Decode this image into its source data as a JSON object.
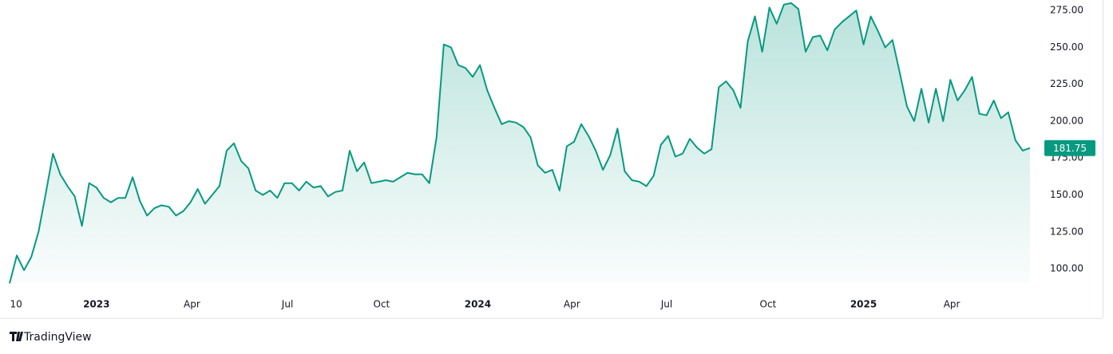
{
  "chart_data": {
    "type": "area",
    "attribution": "TradingView",
    "color": "#089981",
    "values": [
      90,
      109,
      99,
      108,
      125,
      151,
      178,
      164,
      156,
      149,
      129,
      158,
      155,
      148,
      145,
      148,
      148,
      162,
      146,
      136,
      141,
      143,
      142,
      136,
      139,
      145,
      154,
      144,
      150,
      156,
      180,
      185,
      173,
      168,
      153,
      150,
      153,
      148,
      158,
      158,
      153,
      159,
      155,
      156,
      149,
      152,
      153,
      180,
      166,
      172,
      158,
      159,
      160,
      159,
      162,
      165,
      164,
      164,
      158,
      189,
      252,
      250,
      238,
      236,
      230,
      238,
      221,
      209,
      198,
      200,
      199,
      196,
      189,
      170,
      165,
      167,
      153,
      183,
      186,
      198,
      190,
      180,
      167,
      177,
      195,
      166,
      160,
      159,
      156,
      163,
      184,
      190,
      176,
      178,
      188,
      182,
      178,
      181,
      223,
      227,
      221,
      209,
      254,
      271,
      247,
      277,
      266,
      279,
      280,
      276,
      247,
      257,
      258,
      248,
      262,
      267,
      271,
      275,
      252,
      271,
      261,
      250,
      255,
      233,
      210,
      200,
      222,
      199,
      222,
      200,
      228,
      214,
      221,
      230,
      205,
      204,
      214,
      202,
      206,
      187,
      180,
      181.75
    ],
    "xlim": [
      0,
      141
    ],
    "xticks": [
      {
        "value": 0.9,
        "label": "10"
      },
      {
        "value": 12,
        "label": "2023"
      },
      {
        "value": 25.2,
        "label": "Apr"
      },
      {
        "value": 38.4,
        "label": "Jul"
      },
      {
        "value": 51.4,
        "label": "Oct"
      },
      {
        "value": 64.7,
        "label": "2024"
      },
      {
        "value": 77.7,
        "label": "Apr"
      },
      {
        "value": 90.8,
        "label": "Jul"
      },
      {
        "value": 104.8,
        "label": "Oct"
      },
      {
        "value": 118,
        "label": "2025"
      },
      {
        "value": 130.2,
        "label": "Apr"
      }
    ],
    "ylim": [
      90.3,
      282.1
    ],
    "yticks": [
      {
        "value": 100,
        "label": "100.00"
      },
      {
        "value": 125,
        "label": "125.00"
      },
      {
        "value": 150,
        "label": "150.00"
      },
      {
        "value": 175,
        "label": "175.00"
      },
      {
        "value": 200,
        "label": "200.00"
      },
      {
        "value": 225,
        "label": "225.00"
      },
      {
        "value": 250,
        "label": "250.00"
      },
      {
        "value": 275,
        "label": "275.00"
      }
    ],
    "grid": false
  }
}
